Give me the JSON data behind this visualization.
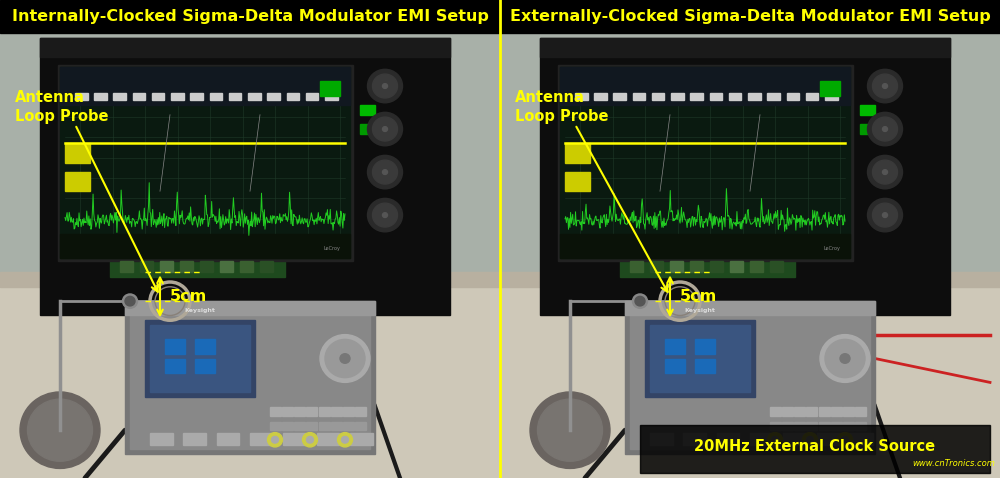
{
  "title_left": "Internally-Clocked Sigma-Delta Modulator EMI Setup",
  "title_right": "Externally-Clocked Sigma-Delta Modulator EMI Setup",
  "title_color": "#FFFF00",
  "title_bg_color": "#000000",
  "title_fontsize": 11.5,
  "title_fontweight": "bold",
  "annotation_antenna": "Antenna\nLoop Probe",
  "annotation_5cm": "5cm",
  "annotation_clock": "20MHz External Clock Source",
  "annotation_color": "#FFFF00",
  "annotation_fontsize": 10.5,
  "annotation_fontweight": "bold",
  "clock_label_bg": "#000000",
  "watermark": "www.cnTronics.com",
  "watermark_color": "#FFFF00",
  "divider_color": "#FFFF00",
  "fig_width": 10.0,
  "fig_height": 4.78,
  "dpi": 100,
  "wall_color": "#b8bdb8",
  "table_color": "#d8d0c0",
  "osc_body_color": "#111111",
  "osc_screen_color": "#001408",
  "osc_screen_grid_color": "#1a3a28",
  "osc_waveform_color_yellow": "#e8e800",
  "osc_waveform_color_green": "#00cc00",
  "fg_body_color": "#888888",
  "fg_screen_color": "#4488cc",
  "pcb_color": "#2a5c2a"
}
